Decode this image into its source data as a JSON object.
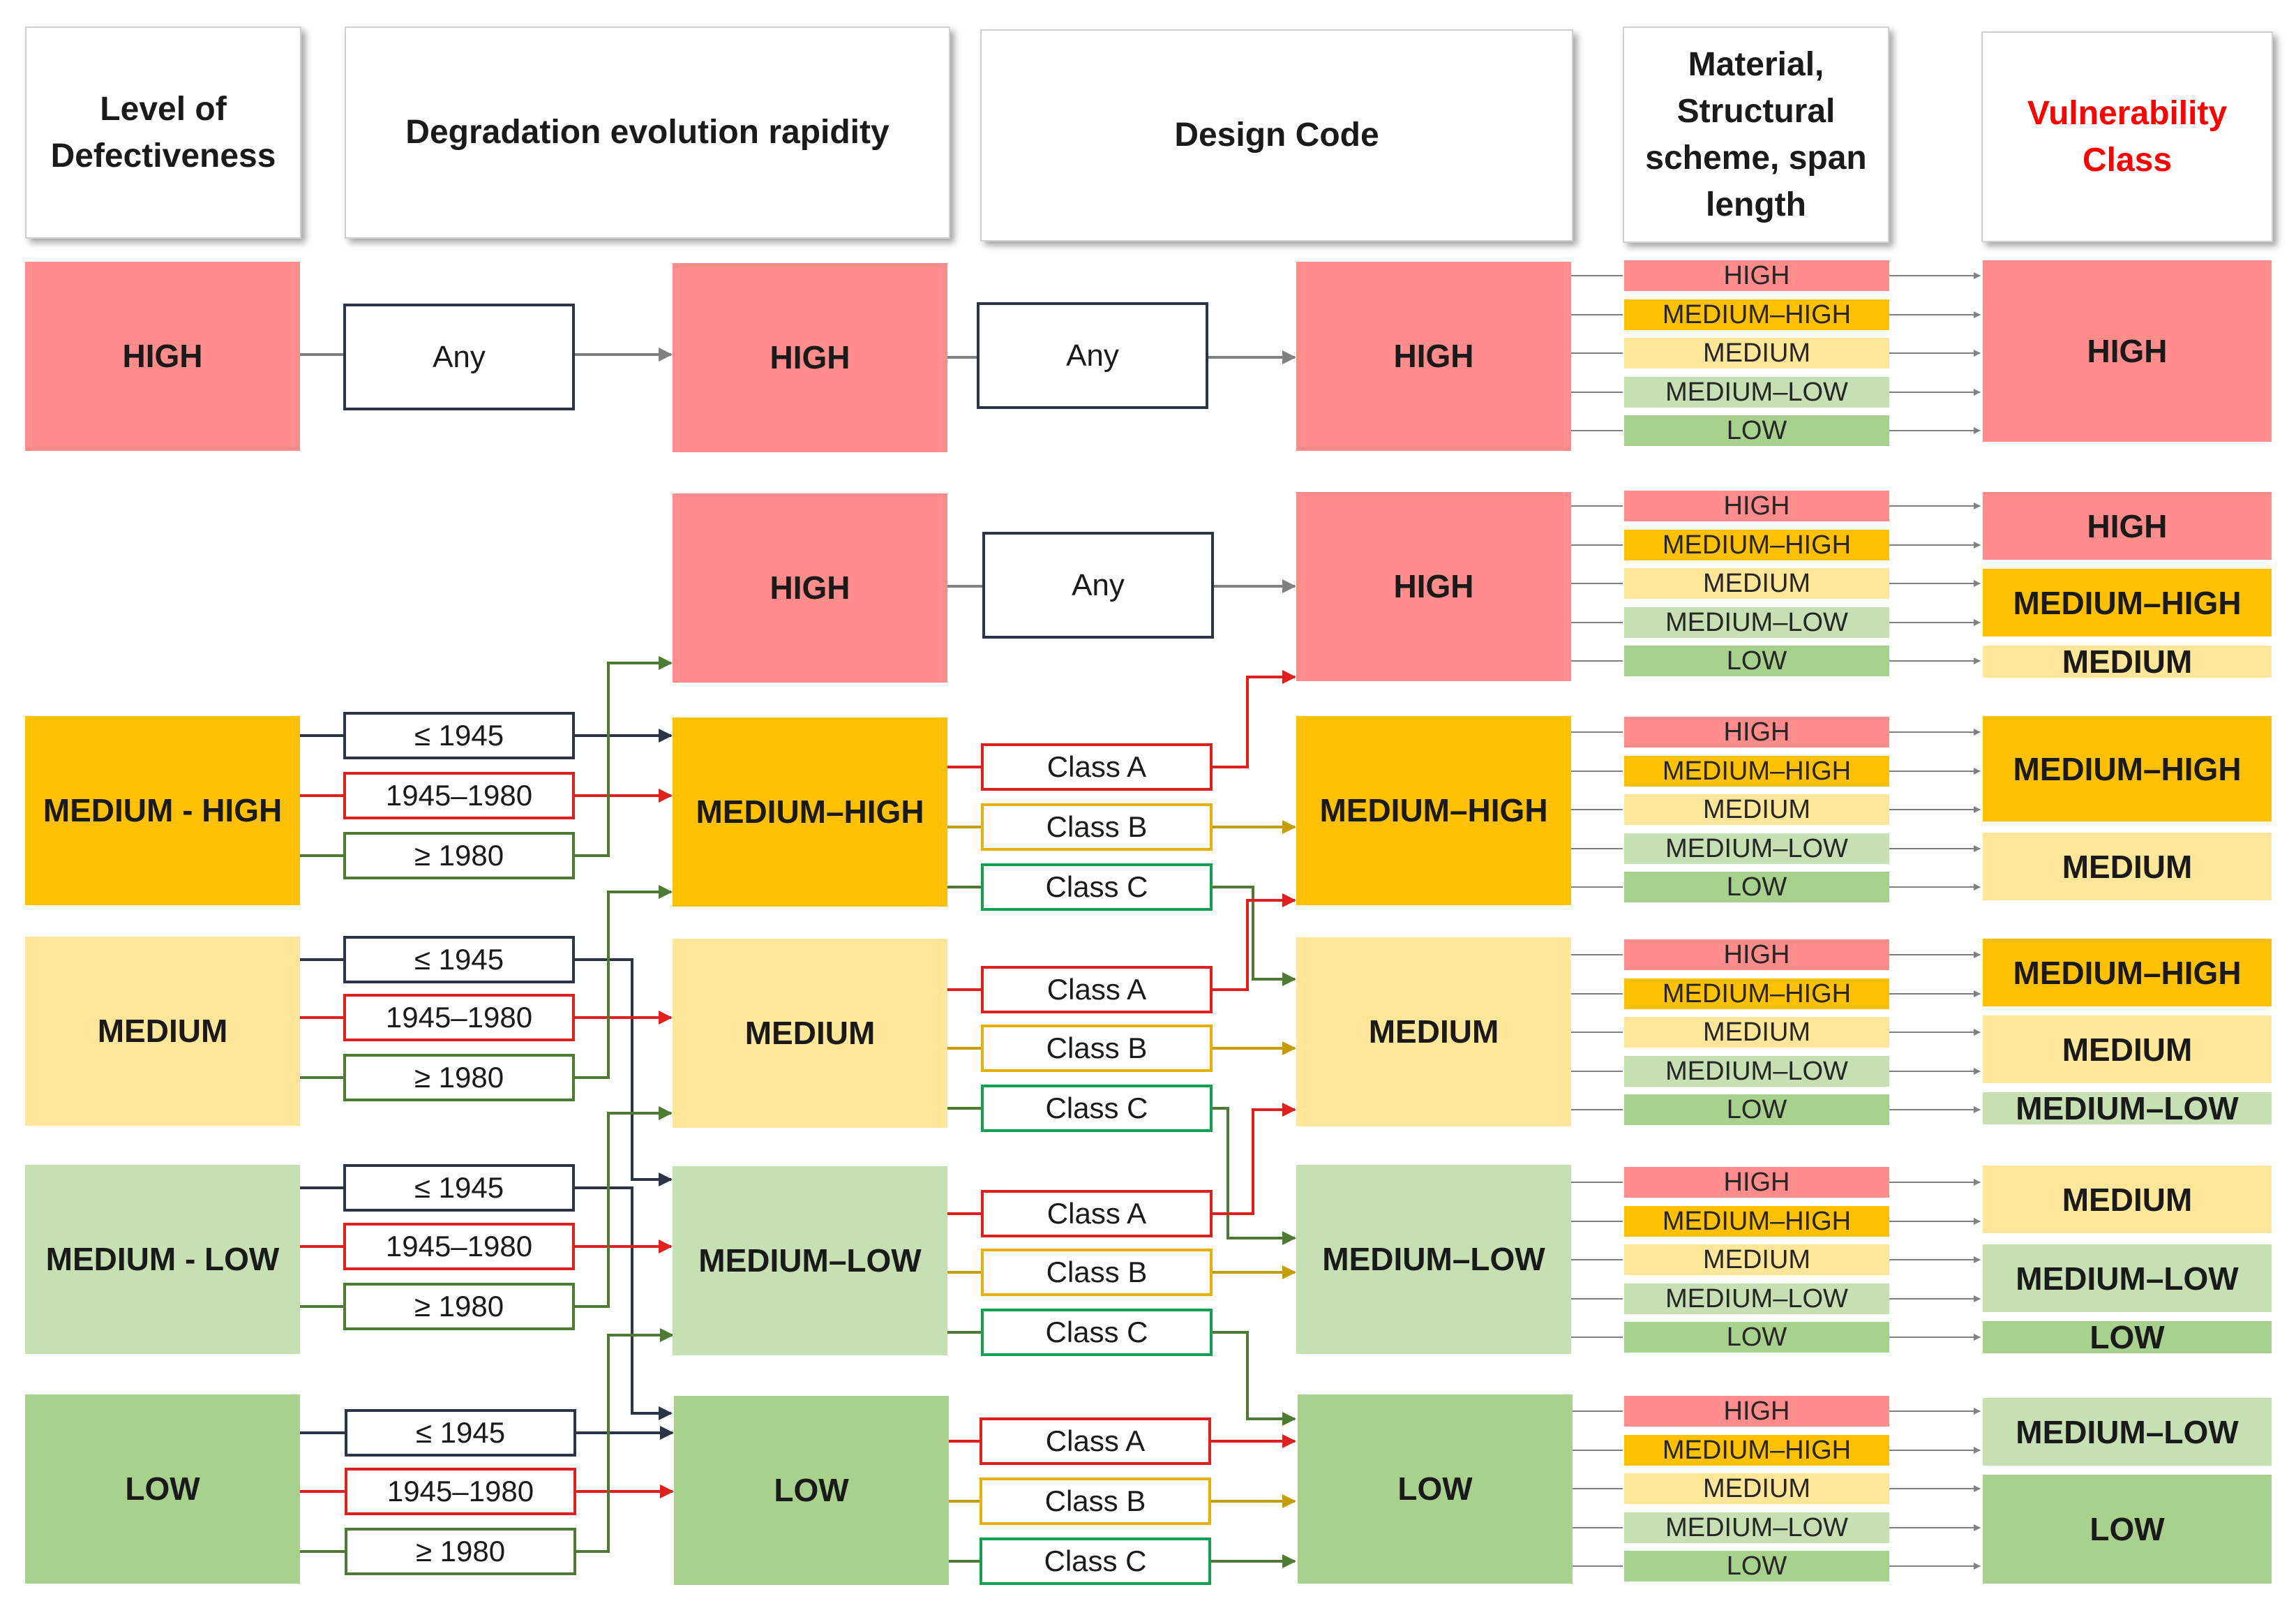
{
  "headers": {
    "defectiveness": "Level of Defectiveness",
    "degradation": "Degradation evolution rapidity",
    "design_code": "Design Code",
    "material": "Material, Structural scheme, span length",
    "vulnerability": "Vulnerability Class"
  },
  "levels": {
    "high": "HIGH",
    "medium_high_dash": "MEDIUM - HIGH",
    "medium": "MEDIUM",
    "medium_low_dash": "MEDIUM - LOW",
    "low": "LOW",
    "medium_high": "MEDIUM–HIGH",
    "medium_low": "MEDIUM–LOW"
  },
  "periods": {
    "before_1945": "≤ 1945",
    "between": "1945–1980",
    "after_1980": "≥ 1980"
  },
  "design_classes": {
    "any": "Any",
    "class_a": "Class A",
    "class_b": "Class B",
    "class_c": "Class C"
  },
  "material_levels": [
    "HIGH",
    "MEDIUM–HIGH",
    "MEDIUM",
    "MEDIUM–LOW",
    "LOW"
  ],
  "vulnerability_outputs": [
    [
      "HIGH"
    ],
    [
      "HIGH",
      "MEDIUM–HIGH",
      "MEDIUM"
    ],
    [
      "MEDIUM–HIGH",
      "MEDIUM"
    ],
    [
      "MEDIUM–HIGH",
      "MEDIUM",
      "MEDIUM–LOW"
    ],
    [
      "MEDIUM",
      "MEDIUM–LOW",
      "LOW"
    ],
    [
      "MEDIUM–LOW",
      "LOW"
    ]
  ],
  "colors": {
    "high": "#ff8b8b",
    "medium_high": "#ffc000",
    "medium": "#ffe699",
    "medium_low": "#c6e0b4",
    "low": "#a9d18e",
    "wire_navy": "#2b3547",
    "wire_red": "#e0201e",
    "wire_green": "#4f7a33",
    "wire_gold": "#c89b00",
    "wire_gray": "#808080"
  }
}
